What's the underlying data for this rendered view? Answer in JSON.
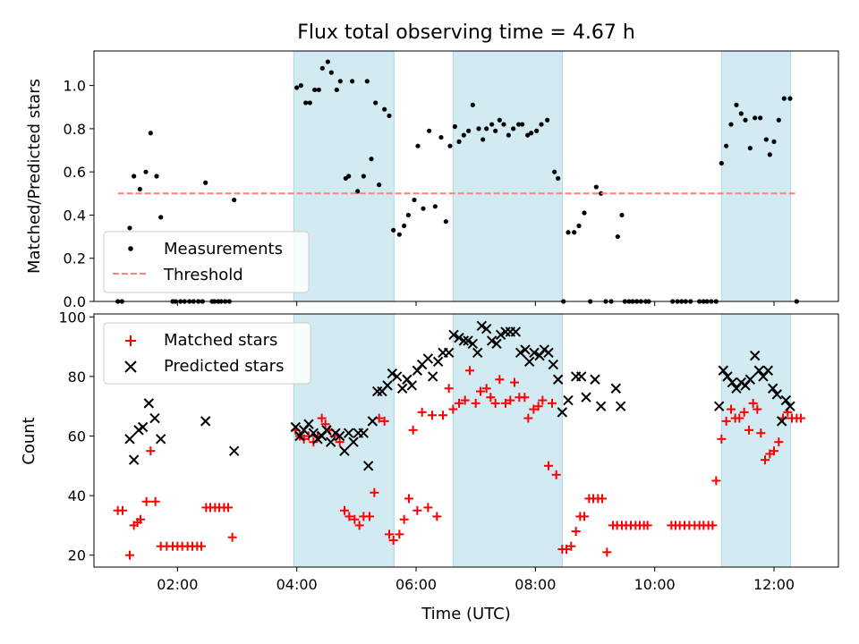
{
  "figure": {
    "title": "Flux total observing time = 4.67 h",
    "xlabel": "Time (UTC)"
  },
  "colors": {
    "shade": "#add8e6",
    "measurements": "#000000",
    "threshold": "#ff7f7f",
    "matched": "#ff0000",
    "predicted": "#000000"
  },
  "chart_data": [
    {
      "type": "scatter",
      "title": "Flux total observing time = 4.67 h",
      "xlabel": "",
      "ylabel": "Matched/Predicted stars",
      "xlim": [
        0.6,
        13.08
      ],
      "ylim": [
        0,
        1.16
      ],
      "x_unit": "hours UTC",
      "x_ticks": [
        2,
        4,
        6,
        8,
        10,
        12
      ],
      "y_ticks": [
        0.0,
        0.2,
        0.4,
        0.6,
        0.8,
        1.0
      ],
      "y_tick_labels": [
        "0.0",
        "0.2",
        "0.4",
        "0.6",
        "0.8",
        "1.0"
      ],
      "shaded_intervals": [
        [
          3.95,
          5.63
        ],
        [
          6.62,
          8.45
        ],
        [
          11.12,
          12.28
        ]
      ],
      "legend_position": "lower-left",
      "series": [
        {
          "name": "Measurements",
          "marker": "point",
          "x": [
            1.0,
            1.07,
            1.2,
            1.27,
            1.37,
            1.47,
            1.55,
            1.65,
            1.72,
            1.92,
            1.97,
            2.05,
            2.12,
            2.2,
            2.27,
            2.35,
            2.42,
            2.47,
            2.58,
            2.62,
            2.68,
            2.73,
            2.8,
            2.87,
            2.95,
            4.0,
            4.07,
            4.15,
            4.22,
            4.3,
            4.37,
            4.43,
            4.52,
            4.58,
            4.67,
            4.73,
            4.82,
            4.87,
            4.93,
            5.02,
            5.12,
            5.18,
            5.25,
            5.32,
            5.38,
            5.47,
            5.55,
            5.62,
            5.72,
            5.8,
            5.87,
            5.97,
            6.03,
            6.12,
            6.22,
            6.32,
            6.42,
            6.5,
            6.57,
            6.65,
            6.72,
            6.8,
            6.88,
            6.95,
            7.05,
            7.12,
            7.18,
            7.27,
            7.33,
            7.4,
            7.47,
            7.55,
            7.63,
            7.72,
            7.78,
            7.87,
            7.93,
            8.02,
            8.1,
            8.2,
            8.32,
            8.38,
            8.47,
            8.55,
            8.65,
            8.73,
            8.82,
            8.92,
            9.02,
            9.1,
            9.18,
            9.27,
            9.38,
            9.45,
            9.5,
            9.57,
            9.63,
            9.7,
            9.77,
            9.85,
            9.9,
            10.3,
            10.38,
            10.45,
            10.52,
            10.6,
            10.75,
            10.82,
            10.88,
            10.95,
            11.03,
            11.12,
            11.2,
            11.28,
            11.37,
            11.45,
            11.52,
            11.6,
            11.68,
            11.77,
            11.87,
            11.93,
            12.0,
            12.08,
            12.17,
            12.27,
            12.38
          ],
          "y": [
            0.0,
            0.0,
            0.34,
            0.58,
            0.52,
            0.6,
            0.78,
            0.58,
            0.39,
            0.0,
            0.0,
            0.0,
            0.0,
            0.0,
            0.0,
            0.0,
            0.0,
            0.55,
            0.0,
            0.0,
            0.0,
            0.0,
            0.0,
            0.0,
            0.47,
            0.99,
            1.0,
            0.92,
            0.92,
            0.98,
            0.98,
            1.08,
            1.11,
            1.06,
            0.98,
            1.02,
            0.57,
            0.58,
            1.02,
            0.51,
            0.58,
            1.02,
            0.66,
            0.92,
            0.54,
            0.89,
            0.86,
            0.33,
            0.31,
            0.35,
            0.4,
            0.47,
            0.72,
            0.43,
            0.79,
            0.44,
            0.76,
            0.37,
            0.72,
            0.81,
            0.74,
            0.77,
            0.79,
            0.91,
            0.8,
            0.75,
            0.8,
            0.82,
            0.79,
            0.84,
            0.82,
            0.77,
            0.8,
            0.82,
            0.82,
            0.77,
            0.78,
            0.79,
            0.82,
            0.84,
            0.6,
            0.57,
            0.0,
            0.32,
            0.32,
            0.35,
            0.41,
            0.0,
            0.53,
            0.5,
            0.0,
            0.0,
            0.3,
            0.4,
            0.0,
            0.0,
            0.0,
            0.0,
            0.0,
            0.0,
            0.0,
            0.0,
            0.0,
            0.0,
            0.0,
            0.0,
            0.0,
            0.0,
            0.0,
            0.0,
            0.0,
            0.64,
            0.72,
            0.82,
            0.91,
            0.87,
            0.84,
            0.71,
            0.85,
            0.85,
            0.75,
            0.68,
            0.74,
            0.84,
            0.94,
            0.94,
            0.0
          ]
        },
        {
          "name": "Threshold",
          "marker": "dashed-line",
          "x": [
            1.0,
            12.38
          ],
          "y": [
            0.5,
            0.5
          ]
        }
      ]
    },
    {
      "type": "scatter",
      "xlabel": "Time (UTC)",
      "ylabel": "Count",
      "xlim": [
        0.6,
        13.08
      ],
      "ylim": [
        16,
        101
      ],
      "x_ticks": [
        2,
        4,
        6,
        8,
        10,
        12
      ],
      "x_tick_labels": [
        "02:00",
        "04:00",
        "06:00",
        "08:00",
        "10:00",
        "12:00"
      ],
      "y_ticks": [
        20,
        40,
        60,
        80,
        100
      ],
      "y_tick_labels": [
        "20",
        "40",
        "60",
        "80",
        "100"
      ],
      "shaded_intervals": [
        [
          3.95,
          5.63
        ],
        [
          6.62,
          8.45
        ],
        [
          11.12,
          12.28
        ]
      ],
      "legend_position": "upper-left",
      "series": [
        {
          "name": "Matched stars",
          "marker": "plus",
          "x": [
            1.0,
            1.08,
            1.2,
            1.27,
            1.33,
            1.38,
            1.48,
            1.55,
            1.63,
            1.72,
            1.82,
            1.92,
            2.0,
            2.08,
            2.17,
            2.25,
            2.33,
            2.4,
            2.48,
            2.55,
            2.63,
            2.7,
            2.78,
            2.85,
            2.92,
            3.98,
            4.05,
            4.12,
            4.2,
            4.28,
            4.35,
            4.42,
            4.48,
            4.55,
            4.63,
            4.72,
            4.8,
            4.88,
            4.97,
            5.05,
            5.12,
            5.22,
            5.3,
            5.38,
            5.47,
            5.55,
            5.62,
            5.72,
            5.8,
            5.88,
            5.95,
            6.02,
            6.1,
            6.2,
            6.27,
            6.35,
            6.45,
            6.55,
            6.62,
            6.72,
            6.82,
            6.9,
            7.0,
            7.08,
            7.18,
            7.25,
            7.33,
            7.4,
            7.5,
            7.58,
            7.65,
            7.73,
            7.82,
            7.88,
            7.97,
            8.05,
            8.12,
            8.22,
            8.28,
            8.35,
            8.45,
            8.52,
            8.6,
            8.68,
            8.75,
            8.82,
            8.9,
            8.97,
            9.05,
            9.12,
            9.2,
            9.3,
            9.37,
            9.45,
            9.52,
            9.6,
            9.68,
            9.75,
            9.82,
            9.88,
            10.28,
            10.35,
            10.42,
            10.5,
            10.58,
            10.67,
            10.75,
            10.82,
            10.9,
            10.97,
            11.03,
            11.12,
            11.2,
            11.28,
            11.35,
            11.42,
            11.5,
            11.58,
            11.65,
            11.72,
            11.78,
            11.85,
            11.93,
            12.0,
            12.08,
            12.15,
            12.23,
            12.3,
            12.38,
            12.45
          ],
          "y": [
            35,
            35,
            20,
            30,
            31,
            32,
            38,
            55,
            38,
            23,
            23,
            23,
            23,
            23,
            23,
            23,
            23,
            23,
            36,
            36,
            36,
            36,
            36,
            36,
            26,
            62,
            60,
            59,
            60,
            58,
            60,
            66,
            64,
            62,
            60,
            58,
            35,
            33,
            32,
            30,
            33,
            33,
            41,
            66,
            65,
            27,
            25,
            27,
            32,
            39,
            62,
            35,
            68,
            36,
            67,
            33,
            67,
            76,
            69,
            71,
            72,
            82,
            71,
            75,
            76,
            73,
            71,
            79,
            71,
            72,
            78,
            73,
            73,
            66,
            69,
            70,
            72,
            50,
            71,
            47,
            22,
            22,
            23,
            28,
            33,
            33,
            39,
            39,
            39,
            39,
            21,
            30,
            30,
            30,
            30,
            30,
            30,
            30,
            30,
            30,
            30,
            30,
            30,
            30,
            30,
            30,
            30,
            30,
            30,
            30,
            45,
            59,
            65,
            69,
            66,
            66,
            68,
            62,
            71,
            69,
            61,
            52,
            54,
            55,
            58,
            66,
            68,
            66,
            66,
            66
          ]
        },
        {
          "name": "Predicted stars",
          "marker": "x",
          "x": [
            1.2,
            1.27,
            1.35,
            1.42,
            1.52,
            1.62,
            1.72,
            2.47,
            2.95,
            3.98,
            4.05,
            4.12,
            4.2,
            4.28,
            4.35,
            4.42,
            4.5,
            4.57,
            4.65,
            4.72,
            4.8,
            4.87,
            4.95,
            5.03,
            5.12,
            5.2,
            5.27,
            5.35,
            5.43,
            5.52,
            5.6,
            5.68,
            5.77,
            5.85,
            5.93,
            6.02,
            6.1,
            6.2,
            6.28,
            6.37,
            6.45,
            6.55,
            6.63,
            6.72,
            6.8,
            6.87,
            6.95,
            7.03,
            7.1,
            7.18,
            7.27,
            7.35,
            7.42,
            7.5,
            7.58,
            7.67,
            7.75,
            7.83,
            7.9,
            7.98,
            8.07,
            8.15,
            8.22,
            8.3,
            8.38,
            8.45,
            8.55,
            8.68,
            8.77,
            8.85,
            9.0,
            9.1,
            9.35,
            9.43,
            11.08,
            11.15,
            11.22,
            11.3,
            11.37,
            11.45,
            11.52,
            11.6,
            11.68,
            11.75,
            11.82,
            11.9,
            11.98,
            12.05,
            12.13,
            12.2,
            12.27
          ],
          "y": [
            59,
            52,
            62,
            63,
            71,
            66,
            59,
            65,
            55,
            63,
            60,
            62,
            64,
            61,
            59,
            60,
            62,
            58,
            61,
            60,
            55,
            61,
            58,
            61,
            61,
            50,
            65,
            75,
            75,
            77,
            81,
            80,
            76,
            79,
            77,
            82,
            84,
            86,
            80,
            85,
            88,
            88,
            94,
            93,
            92,
            92,
            91,
            88,
            97,
            96,
            92,
            91,
            94,
            95,
            95,
            95,
            88,
            89,
            85,
            88,
            87,
            89,
            88,
            84,
            79,
            68,
            72,
            80,
            80,
            73,
            79,
            70,
            76,
            70,
            70,
            82,
            80,
            78,
            76,
            78,
            77,
            79,
            87,
            82,
            80,
            82,
            76,
            74,
            65,
            72,
            70
          ]
        }
      ]
    }
  ]
}
